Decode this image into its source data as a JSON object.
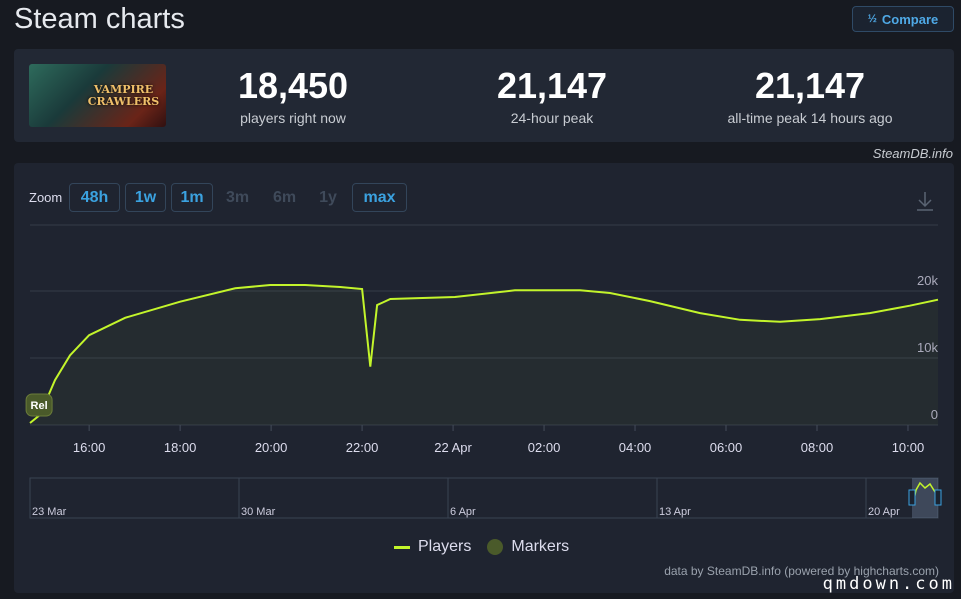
{
  "header": {
    "title": "Steam charts",
    "compare_label": "Compare",
    "compare_icon": "fraction-icon"
  },
  "game": {
    "cover_text": "VAMPIRE CRAWLERS"
  },
  "stats": [
    {
      "value": "18,450",
      "label": "players right now"
    },
    {
      "value": "21,147",
      "label": "24-hour peak"
    },
    {
      "value": "21,147",
      "label": "all-time peak 14 hours ago"
    }
  ],
  "credit": "SteamDB.info",
  "zoom": {
    "label": "Zoom",
    "buttons": [
      "48h",
      "1w",
      "1m",
      "3m",
      "6m",
      "1y",
      "max"
    ]
  },
  "chart_data": {
    "type": "line",
    "title": "",
    "xlabel": "",
    "ylabel": "",
    "x_unit": "hours since 21 Apr 00:00",
    "xlim": [
      14.7,
      34.66
    ],
    "ylim": [
      0,
      23000
    ],
    "yticks": [
      {
        "v": 0,
        "label": "0"
      },
      {
        "v": 10000,
        "label": "10k"
      },
      {
        "v": 20000,
        "label": "20k"
      }
    ],
    "xticks": [
      {
        "v": 16,
        "label": "16:00"
      },
      {
        "v": 18,
        "label": "18:00"
      },
      {
        "v": 20,
        "label": "20:00"
      },
      {
        "v": 22,
        "label": "22:00"
      },
      {
        "v": 24,
        "label": "22 Apr"
      },
      {
        "v": 26,
        "label": "02:00"
      },
      {
        "v": 28,
        "label": "04:00"
      },
      {
        "v": 30,
        "label": "06:00"
      },
      {
        "v": 32,
        "label": "08:00"
      },
      {
        "v": 34,
        "label": "10:00"
      }
    ],
    "series": [
      {
        "name": "Players",
        "color": "#c3f52b",
        "x": [
          14.7,
          14.92,
          15.25,
          15.58,
          16,
          16.79,
          18,
          19.21,
          19.98,
          20.75,
          21.52,
          22.0,
          22.18,
          22.33,
          22.62,
          24.04,
          25.36,
          26.79,
          27.45,
          28.33,
          29.43,
          30.31,
          31.19,
          32.07,
          33.16,
          34.04,
          34.66
        ],
        "values": [
          300,
          1500,
          6700,
          10400,
          13400,
          16000,
          18400,
          20400,
          20900,
          20900,
          20600,
          20300,
          8700,
          17900,
          18800,
          19100,
          20100,
          20100,
          19700,
          18500,
          16700,
          15700,
          15400,
          15800,
          16700,
          17800,
          18700
        ]
      }
    ],
    "markers": [
      {
        "x": 14.9,
        "label": "Rel"
      }
    ],
    "navigator_labels": [
      "23 Mar",
      "30 Mar",
      "6 Apr",
      "13 Apr",
      "20 Apr"
    ],
    "legend": [
      {
        "name": "Players",
        "color": "#c3f52b"
      },
      {
        "name": "Markers",
        "color": "#4a5a2a"
      }
    ],
    "legend_position": "bottom"
  },
  "footer": "data by SteamDB.info (powered by highcharts.com)",
  "watermark": "qmdown.com"
}
